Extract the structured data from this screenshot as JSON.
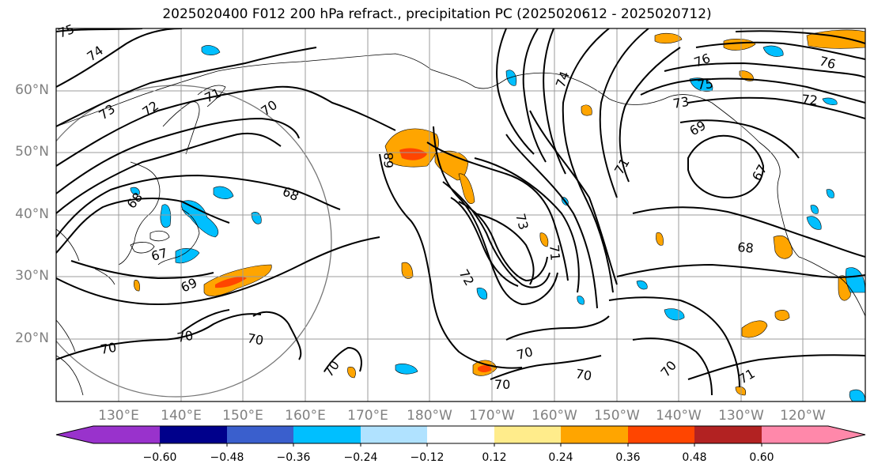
{
  "title": "2025020400 F012 200 hPa refract., precipitation PC (2025020612 - 2025020712)",
  "map": {
    "lat_labels": [
      "60°N",
      "50°N",
      "40°N",
      "30°N",
      "20°N"
    ],
    "lon_labels": [
      "130°E",
      "140°E",
      "150°E",
      "160°E",
      "170°E",
      "180°W",
      "170°W",
      "160°W",
      "150°W",
      "140°W",
      "130°W",
      "120°W"
    ],
    "contour_labels": [
      "75",
      "74",
      "73",
      "72",
      "71",
      "70",
      "68",
      "68",
      "67",
      "69",
      "70",
      "70",
      "70",
      "70",
      "68",
      "73",
      "71",
      "72",
      "70",
      "70",
      "70",
      "74",
      "71",
      "76",
      "76",
      "75",
      "73",
      "72",
      "69",
      "67",
      "68",
      "70",
      "71"
    ],
    "gridline_color": "#9b9b9b",
    "contour_color": "#000000",
    "coastline_color": "#000000",
    "circle_color": "#777777"
  },
  "colorbar": {
    "ticks": [
      "−0.60",
      "−0.48",
      "−0.36",
      "−0.24",
      "−0.12",
      "0.12",
      "0.24",
      "0.36",
      "0.48",
      "0.60"
    ],
    "colors": [
      "#9932cc",
      "#00008b",
      "#3a5fcd",
      "#00bfff",
      "#b0e2ff",
      "#ffffff",
      "#ffec8b",
      "#ffa500",
      "#ff4500",
      "#b22222",
      "#ff88aa"
    ]
  }
}
